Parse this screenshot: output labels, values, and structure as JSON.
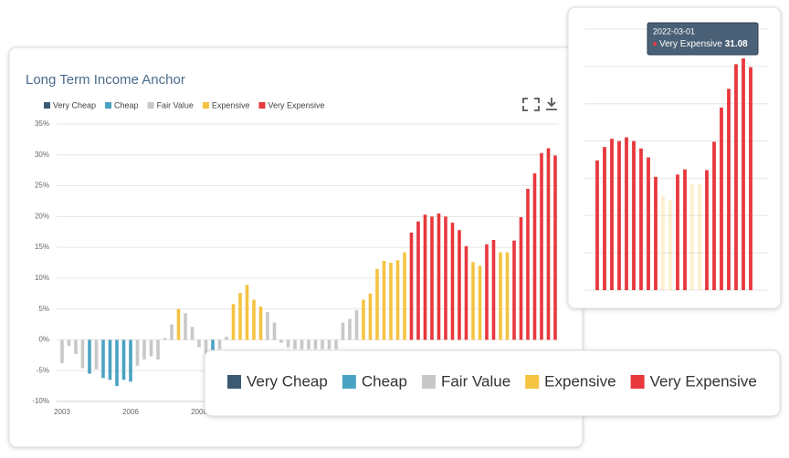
{
  "chart_data": {
    "type": "bar",
    "title": "Long Term Income Anchor",
    "categories": [
      "2003",
      null,
      null,
      null,
      null,
      null,
      null,
      null,
      null,
      null,
      "2006",
      null,
      null,
      null,
      null,
      null,
      null,
      null,
      null,
      null,
      "2008",
      null,
      null,
      null,
      null,
      null,
      null,
      null,
      null,
      null,
      null,
      null,
      null,
      null,
      null,
      null,
      null,
      null,
      null,
      null,
      null,
      null,
      null,
      null,
      null,
      null,
      null,
      null,
      null,
      null,
      null,
      null,
      null,
      null,
      null,
      null,
      null,
      null,
      null,
      null,
      null,
      null,
      null,
      null,
      null,
      null,
      null,
      null,
      null,
      null,
      null,
      null,
      null
    ],
    "series": [
      {
        "name": "Very Cheap",
        "color": "#3d5a73",
        "values": [
          null,
          null,
          null,
          null,
          null,
          null,
          null,
          null,
          null,
          null,
          null,
          null,
          null,
          null,
          null,
          null,
          null,
          null,
          null,
          null,
          null,
          null,
          null,
          null,
          null,
          null,
          null,
          null,
          null,
          null,
          null,
          null,
          null,
          null,
          null,
          null,
          null,
          null,
          null,
          null,
          null,
          null,
          null,
          null,
          null,
          null,
          null,
          null,
          null,
          null,
          null,
          null,
          null,
          null,
          null,
          null,
          null,
          null,
          null,
          null,
          null,
          null,
          null,
          null,
          null,
          null,
          null,
          null,
          null,
          null,
          null,
          null,
          null
        ]
      },
      {
        "name": "Cheap",
        "color": "#4ba3c3",
        "values": [
          null,
          null,
          null,
          null,
          -5.5,
          null,
          -6.2,
          -6.5,
          -7.5,
          -6.5,
          -6.8,
          null,
          null,
          null,
          null,
          null,
          null,
          null,
          null,
          null,
          null,
          null,
          -2.4,
          null,
          null,
          null,
          null,
          null,
          null,
          null,
          null,
          null,
          null,
          null,
          null,
          null,
          null,
          null,
          null,
          null,
          null,
          null,
          null,
          null,
          null,
          null,
          null,
          null,
          null,
          null,
          null,
          null,
          null,
          null,
          null,
          null,
          null,
          null,
          null,
          null,
          null,
          null,
          null,
          null,
          null,
          null,
          null,
          null,
          null,
          null,
          null,
          null,
          null
        ]
      },
      {
        "name": "Fair Value",
        "color": "#c8c8c8",
        "values": [
          -3.8,
          -1.0,
          -2.3,
          -4.6,
          null,
          -4.8,
          null,
          null,
          null,
          null,
          null,
          -4.2,
          -3.2,
          -2.7,
          -3.2,
          0.3,
          2.5,
          null,
          4.3,
          2.1,
          -1.2,
          -3.7,
          null,
          -1.5,
          0.5,
          null,
          null,
          null,
          null,
          null,
          4.5,
          2.8,
          -0.5,
          -1.2,
          -1.5,
          -1.5,
          -1.5,
          -1.5,
          -1.5,
          -1.5,
          -1.5,
          2.8,
          3.4,
          4.8,
          null,
          null,
          null,
          null,
          null,
          null,
          null,
          null,
          null,
          null,
          null,
          null,
          null,
          null,
          null,
          null,
          null,
          null,
          null,
          null,
          null,
          null,
          null,
          null,
          null,
          null,
          null,
          null,
          null
        ]
      },
      {
        "name": "Expensive",
        "color": "#f5c342",
        "values": [
          null,
          null,
          null,
          null,
          null,
          null,
          null,
          null,
          null,
          null,
          null,
          null,
          null,
          null,
          null,
          null,
          null,
          5.0,
          null,
          null,
          null,
          null,
          null,
          null,
          null,
          5.8,
          7.6,
          8.9,
          6.5,
          5.4,
          null,
          null,
          null,
          null,
          null,
          null,
          null,
          null,
          null,
          null,
          null,
          null,
          null,
          null,
          6.5,
          7.5,
          11.5,
          12.8,
          12.5,
          12.9,
          14.2,
          null,
          null,
          null,
          null,
          null,
          null,
          null,
          null,
          null,
          12.6,
          12.0,
          null,
          null,
          14.2,
          14.2,
          null,
          null,
          null,
          null,
          null,
          null,
          null
        ]
      },
      {
        "name": "Very Expensive",
        "color": "#e8383d",
        "values": [
          null,
          null,
          null,
          null,
          null,
          null,
          null,
          null,
          null,
          null,
          null,
          null,
          null,
          null,
          null,
          null,
          null,
          null,
          null,
          null,
          null,
          null,
          null,
          null,
          null,
          null,
          null,
          null,
          null,
          null,
          null,
          null,
          null,
          null,
          null,
          null,
          null,
          null,
          null,
          null,
          null,
          null,
          null,
          null,
          null,
          null,
          null,
          null,
          null,
          null,
          null,
          17.4,
          19.2,
          20.3,
          20.0,
          20.5,
          20.0,
          19.0,
          17.8,
          15.2,
          null,
          null,
          15.5,
          16.2,
          null,
          null,
          16.1,
          19.9,
          24.5,
          27.0,
          30.3,
          31.08,
          29.9
        ]
      }
    ],
    "ylim": [
      -10,
      35
    ],
    "yticks": [
      {
        "value": -10,
        "label": "-10%"
      },
      {
        "value": -5,
        "label": "-5%"
      },
      {
        "value": 0,
        "label": "0%"
      },
      {
        "value": 5,
        "label": "5%"
      },
      {
        "value": 10,
        "label": "10%"
      },
      {
        "value": 15,
        "label": "15%"
      },
      {
        "value": 20,
        "label": "20%"
      },
      {
        "value": 25,
        "label": "25%"
      },
      {
        "value": 30,
        "label": "30%"
      },
      {
        "value": 35,
        "label": "35%"
      }
    ],
    "grid": true,
    "tooltip": {
      "date": "2022-03-01"
    }
  }
}
